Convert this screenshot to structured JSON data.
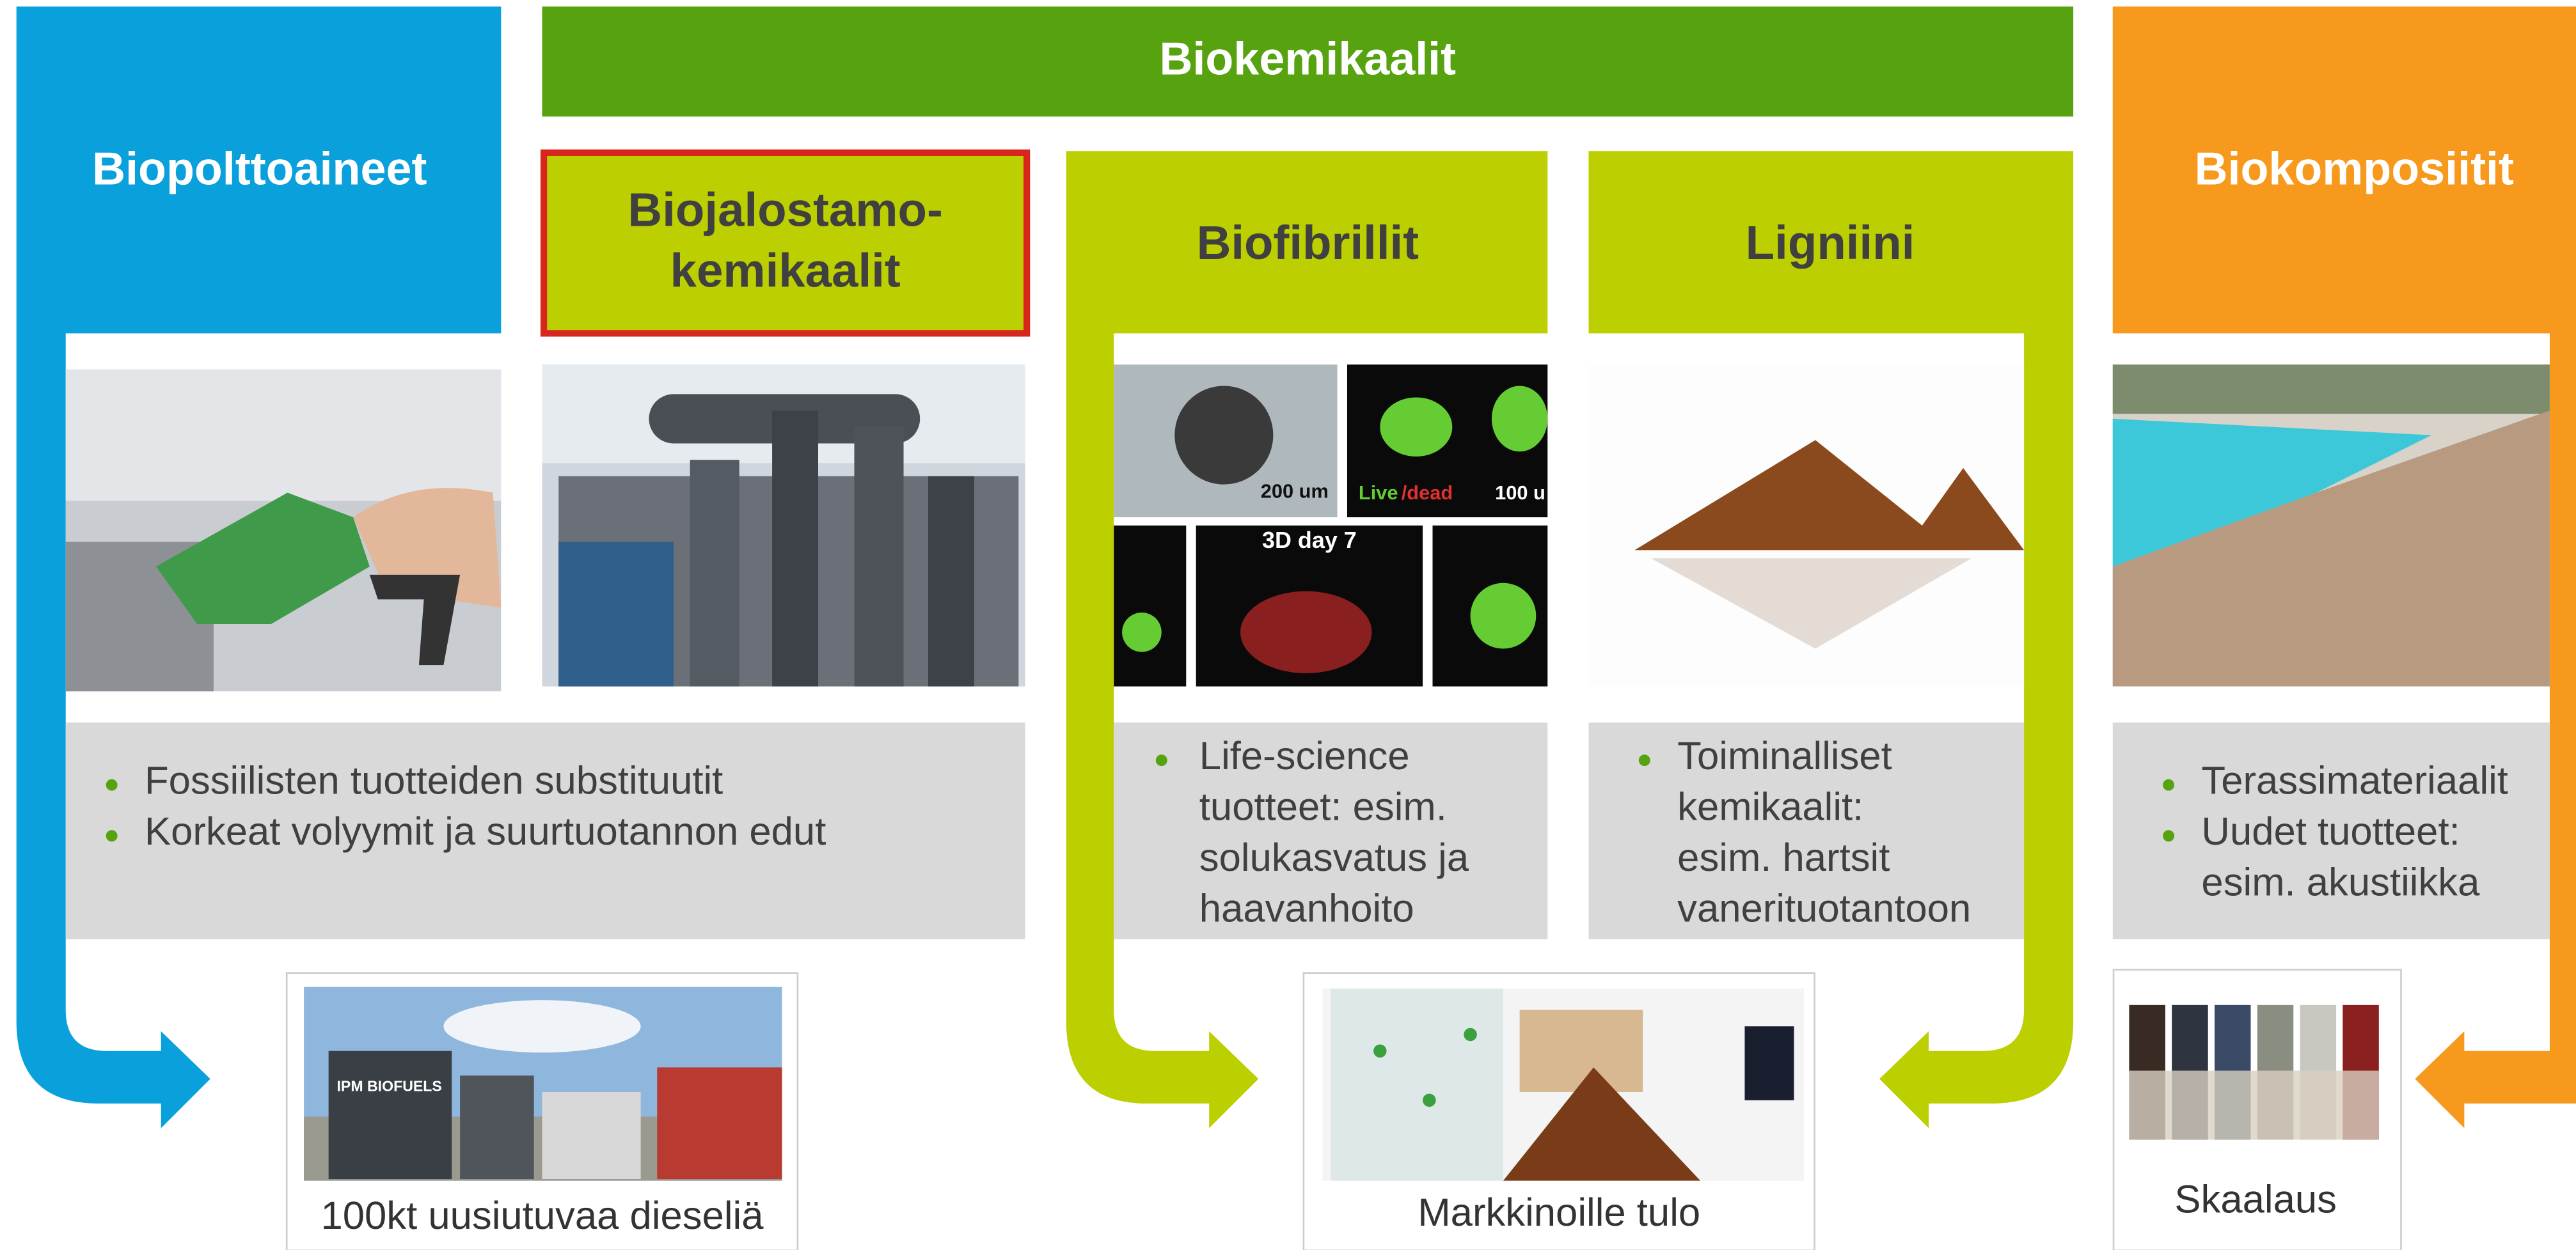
{
  "top_banner": "Biokemikaalit",
  "columns": [
    {
      "title": [
        "Biopolttoaineet"
      ]
    },
    {
      "title": [
        "Biojalostamo-",
        "kemikaalit"
      ]
    },
    {
      "title": [
        "Biofibrillit"
      ],
      "bullets": [
        [
          "Life-science",
          "tuotteet: esim.",
          "solukasvatus ja",
          "haavanhoito"
        ]
      ]
    },
    {
      "title": [
        "Ligniini"
      ],
      "bullets": [
        [
          "Toiminalliset",
          "kemikaalit:",
          "esim. hartsit",
          "vanerituotantoon"
        ]
      ]
    },
    {
      "title": [
        "Biokomposiitit"
      ],
      "bullets": [
        [
          "Terassimateriaalit"
        ],
        [
          "Uudet tuotteet:",
          "esim. akustiikka"
        ]
      ]
    }
  ],
  "shared_bullets": [
    "Fossiilisten tuotteiden substituutit",
    "Korkeat volyymit ja suurtuotannon edut"
  ],
  "outcomes": [
    "100kt uusiutuvaa dieseliä",
    "Markkinoille tulo",
    "Skaalaus"
  ],
  "image_texts": {
    "scale_bar_1": "200 um",
    "live": "Live",
    "dead": "/dead",
    "scale_bar_2": "100 u",
    "day": "3D day 7",
    "plant_sign": "IPM BIOFUELS"
  }
}
